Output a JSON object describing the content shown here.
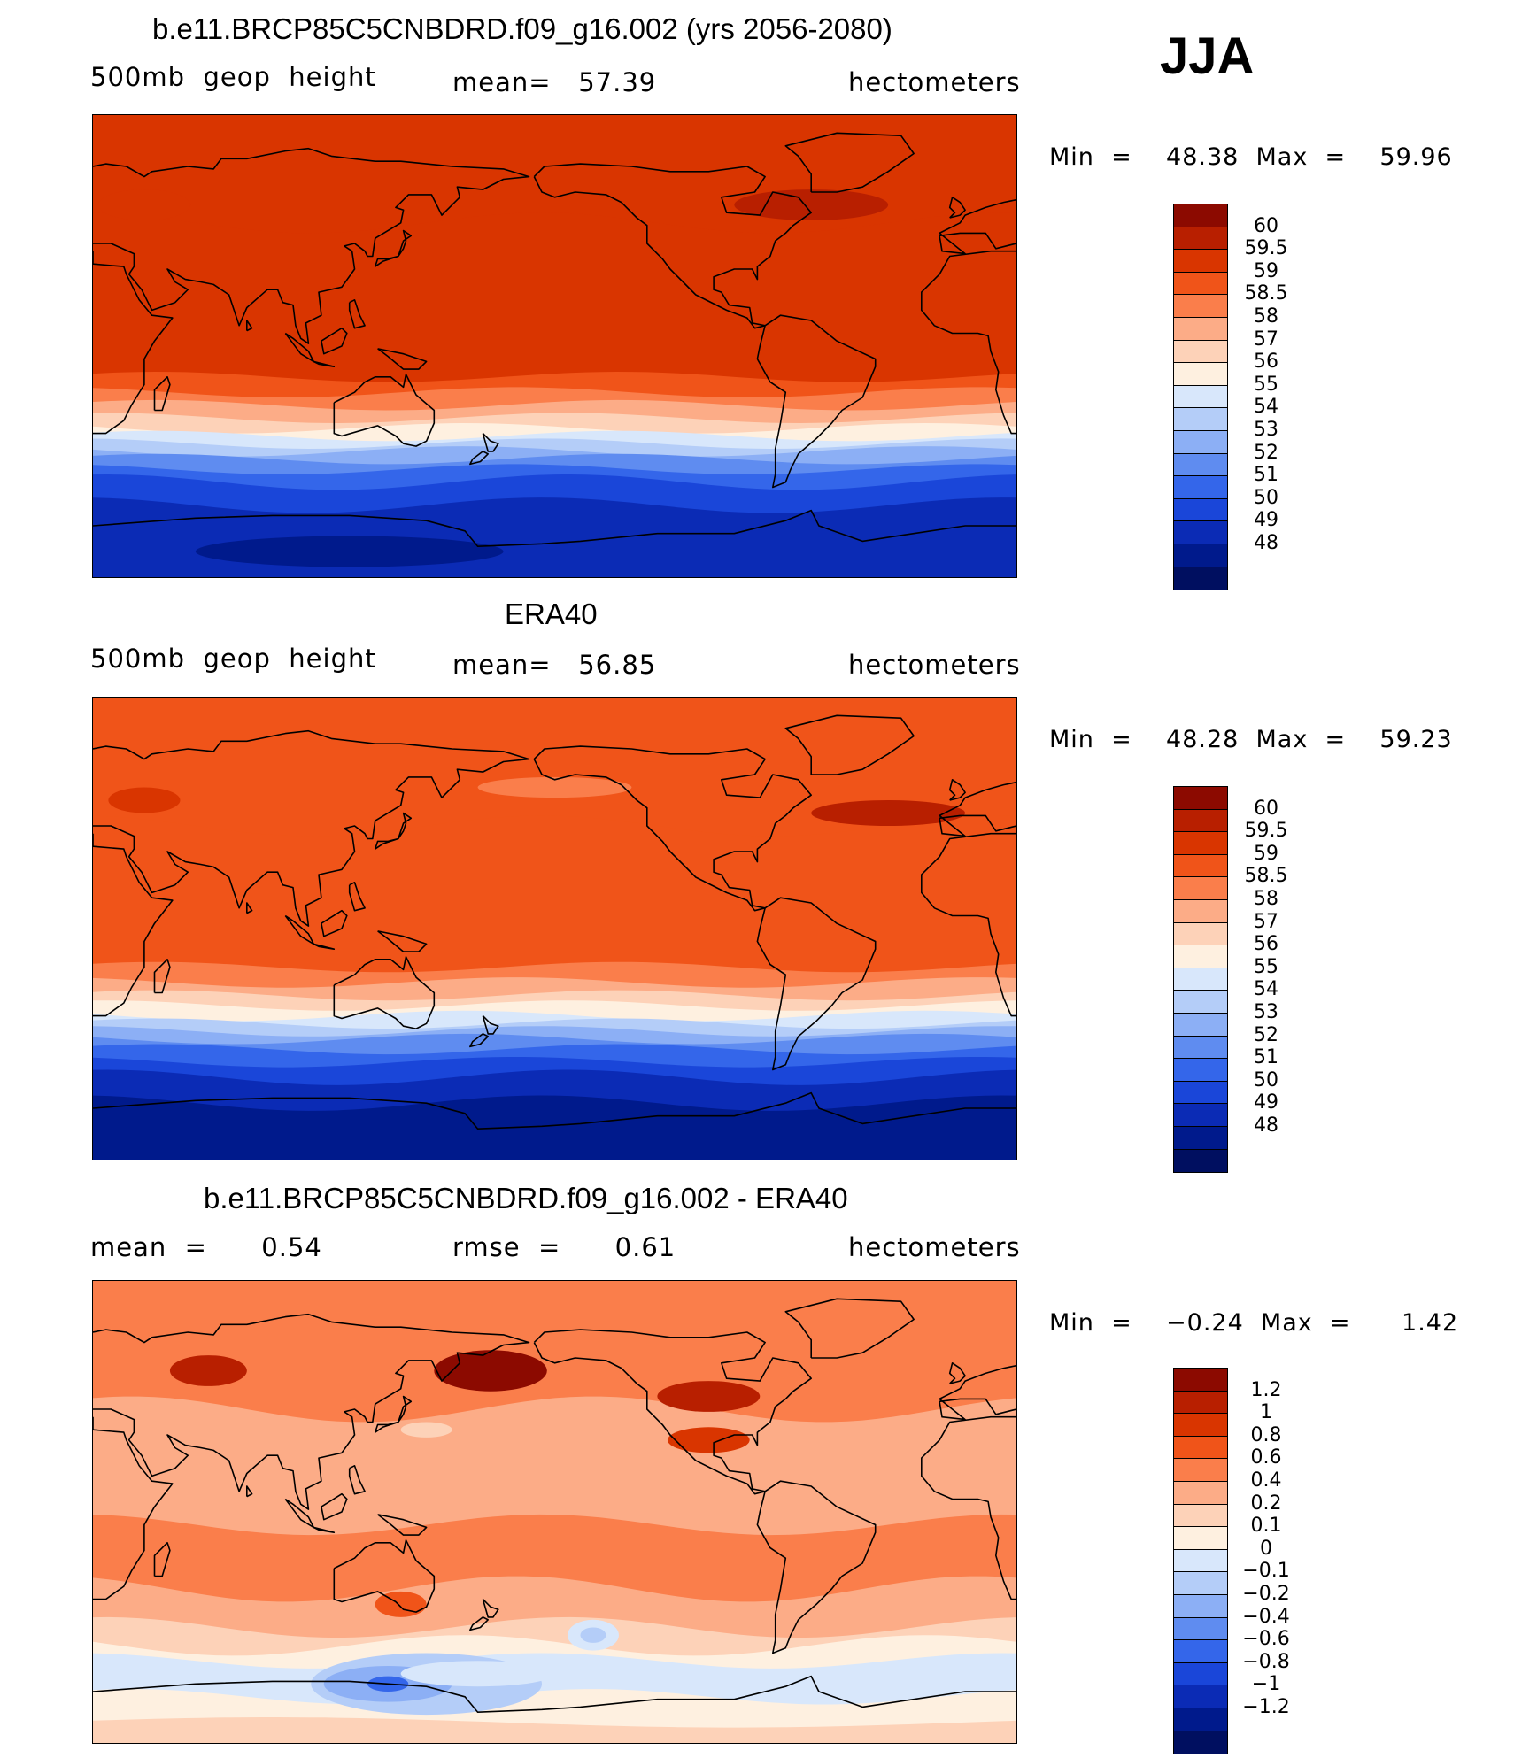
{
  "season": "JJA",
  "coast_color": "#000000",
  "panels": [
    {
      "title": "b.e11.BRCP85C5CNBDRD.f09_g16.002 (yrs 2056-2080)",
      "left_label": "500mb  geop  height",
      "center_label": "mean=   57.39",
      "right_label": "hectometers",
      "min_max": "Min  =    48.38  Max  =    59.96",
      "map_type": "model",
      "colorbar": {
        "colors": [
          "#8c0a00",
          "#b81f00",
          "#d93500",
          "#f05419",
          "#fa7e4b",
          "#fcac87",
          "#fdd2b8",
          "#fef0e0",
          "#d8e7fb",
          "#b4cdf8",
          "#8caff5",
          "#5f8cf0",
          "#3466ea",
          "#1a46d9",
          "#0b2bb5",
          "#001a8c",
          "#000f60"
        ],
        "labels": [
          "60",
          "59.5",
          "59",
          "58.5",
          "58",
          "57",
          "56",
          "55",
          "54",
          "53",
          "52",
          "51",
          "50",
          "49",
          "48"
        ]
      }
    },
    {
      "title": "ERA40",
      "left_label": "500mb  geop  height",
      "center_label": "mean=   56.85",
      "right_label": "hectometers",
      "min_max": "Min  =    48.28  Max  =    59.23",
      "map_type": "obs",
      "colorbar": {
        "colors": [
          "#8c0a00",
          "#b81f00",
          "#d93500",
          "#f05419",
          "#fa7e4b",
          "#fcac87",
          "#fdd2b8",
          "#fef0e0",
          "#d8e7fb",
          "#b4cdf8",
          "#8caff5",
          "#5f8cf0",
          "#3466ea",
          "#1a46d9",
          "#0b2bb5",
          "#001a8c",
          "#000f60"
        ],
        "labels": [
          "60",
          "59.5",
          "59",
          "58.5",
          "58",
          "57",
          "56",
          "55",
          "54",
          "53",
          "52",
          "51",
          "50",
          "49",
          "48"
        ]
      }
    },
    {
      "title": "b.e11.BRCP85C5CNBDRD.f09_g16.002 - ERA40",
      "left_label": "mean  =      0.54",
      "center_label": "rmse  =      0.61",
      "right_label": "hectometers",
      "min_max": "Min  =    −0.24  Max  =      1.42",
      "map_type": "diff",
      "colorbar": {
        "colors": [
          "#8c0a00",
          "#b81f00",
          "#d93500",
          "#f05419",
          "#fa7e4b",
          "#fcac87",
          "#fdd2b8",
          "#fef0e0",
          "#d8e7fb",
          "#b4cdf8",
          "#8caff5",
          "#5f8cf0",
          "#3466ea",
          "#1a46d9",
          "#0b2bb5",
          "#001a8c",
          "#000f60"
        ],
        "labels": [
          "1.2",
          "1",
          "0.8",
          "0.6",
          "0.4",
          "0.2",
          "0.1",
          "0",
          "−0.1",
          "−0.2",
          "−0.4",
          "−0.6",
          "−0.8",
          "−1",
          "−1.2"
        ]
      }
    }
  ]
}
